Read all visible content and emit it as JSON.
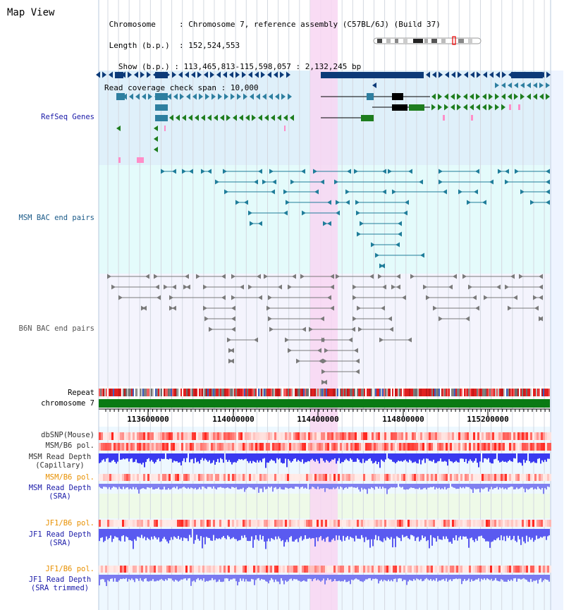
{
  "title": "Map View",
  "info": {
    "chromosome_key": "Chromosome",
    "chromosome_val": "Chromosome 7, reference assembly (C57BL/6J) (Build 37)",
    "length_key": "Length (b.p.)",
    "length_val": "152,524,553",
    "show_key": "Show (b.p.)",
    "show_val": "113,465,813-115,598,057 : 2,132,245 bp",
    "span_key": "Read coverage check span",
    "span_val": "10,000"
  },
  "tracks": {
    "refseq": "RefSeq Genes",
    "msm_bac": "MSM BAC end pairs",
    "b6n_bac": "B6N BAC end pairs",
    "repeat": "Repeat",
    "chromosome": "chromosome 7",
    "dbsnp": "dbSNP(Mouse)",
    "msm_b6_pol": "MSM/B6 pol.",
    "msm_depth_cap_1": "MSM Read Depth",
    "msm_depth_cap_2": "(Capillary)",
    "msm_b6_pol_sra": "MSM/B6 pol.",
    "msm_depth_sra_1": "MSM Read Depth",
    "msm_depth_sra_2": "(SRA)",
    "jf1_b6_pol": "JF1/B6 pol.",
    "jf1_depth_1": "JF1 Read Depth",
    "jf1_depth_2": "(SRA)",
    "jf1_b6_pol_trim": "JF1/B6 pol.",
    "jf1_depth_trim_1": "JF1 Read Depth",
    "jf1_depth_trim_2": "(SRA trimmed)"
  },
  "ruler": {
    "ticks": [
      "113600000",
      "114000000",
      "114400000",
      "114800000",
      "115200000"
    ]
  },
  "colors": {
    "refseq_bg": "#dff0fa",
    "msm_bg": "#e4fbfb",
    "b6n_bg": "#f4f4fd",
    "highlight": "#f8d6f2",
    "navy": "#0c3a78",
    "teal": "#2e7fa0",
    "green": "#1e7d1e",
    "gray": "#808080",
    "chrom_green": "#0a7a14",
    "label_blue": "#1a1aa8",
    "label_orange": "#e89000",
    "label_dark": "#333333",
    "depth_blue": "#5050ee"
  }
}
